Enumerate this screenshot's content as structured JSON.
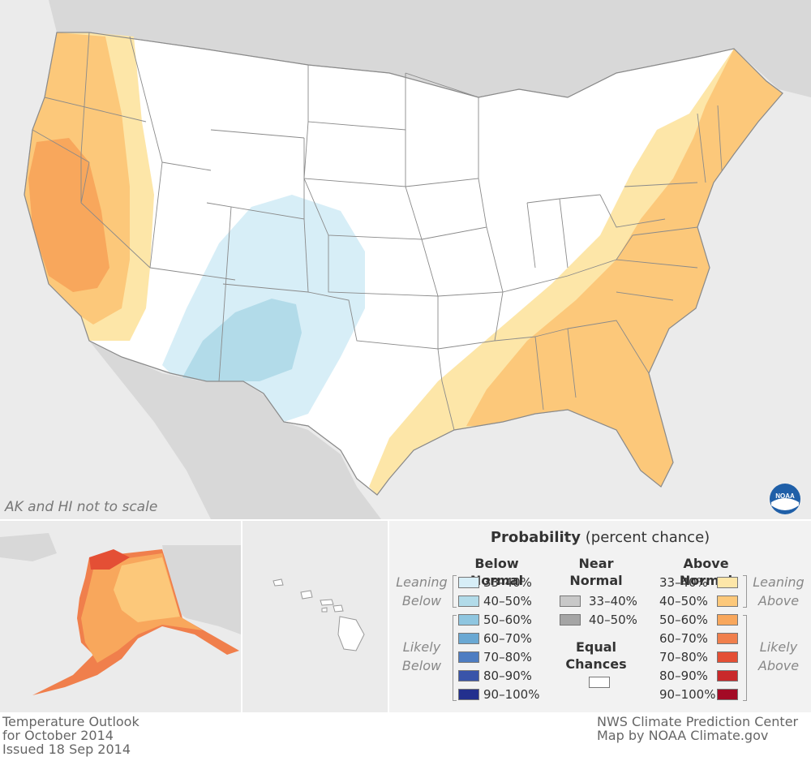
{
  "map": {
    "title_line1": "Temperature Outlook",
    "title_line2": "for October 2014",
    "title_line3": "Issued 18 Sep 2014",
    "credit_line1": "NWS Climate Prediction Center",
    "credit_line2": "Map by NOAA Climate.gov",
    "scale_note": "AK and HI not to scale",
    "logo_text": "NOAA"
  },
  "legend": {
    "title_bold": "Probability",
    "title_rest": "(percent chance)",
    "below": {
      "heading": "Below Normal",
      "side_leaning": [
        "Leaning",
        "Below"
      ],
      "side_likely": [
        "Likely",
        "Below"
      ],
      "items": [
        {
          "label": "33–40%",
          "color": "#d7eef7"
        },
        {
          "label": "40–50%",
          "color": "#b2dbe9"
        },
        {
          "label": "50–60%",
          "color": "#8fc6e0"
        },
        {
          "label": "60–70%",
          "color": "#6aa8d3"
        },
        {
          "label": "70–80%",
          "color": "#4e7dc2"
        },
        {
          "label": "80–90%",
          "color": "#3954a9"
        },
        {
          "label": "90–100%",
          "color": "#23308e"
        }
      ]
    },
    "near": {
      "heading_line1": "Near",
      "heading_line2": "Normal",
      "items": [
        {
          "label": "33–40%",
          "color": "#c8c8c8"
        },
        {
          "label": "40–50%",
          "color": "#a5a5a5"
        }
      ],
      "equal_line1": "Equal",
      "equal_line2": "Chances",
      "equal_color": "#ffffff"
    },
    "above": {
      "heading": "Above Normal",
      "side_leaning": [
        "Leaning",
        "Above"
      ],
      "side_likely": [
        "Likely",
        "Above"
      ],
      "items": [
        {
          "label": "33–40%",
          "color": "#fde6a8"
        },
        {
          "label": "40–50%",
          "color": "#fcc87a"
        },
        {
          "label": "50–60%",
          "color": "#f8a75c"
        },
        {
          "label": "60–70%",
          "color": "#f07f4c"
        },
        {
          "label": "70–80%",
          "color": "#e44f35"
        },
        {
          "label": "80–90%",
          "color": "#c9292b"
        },
        {
          "label": "90–100%",
          "color": "#a30a25"
        }
      ]
    }
  }
}
